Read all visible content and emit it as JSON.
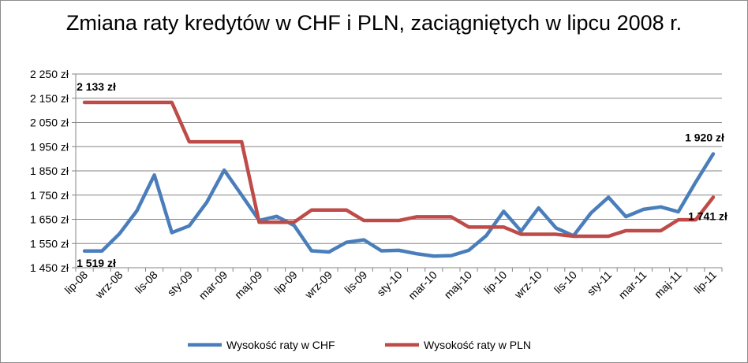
{
  "chart_data": {
    "type": "line",
    "title": "Zmiana raty kredytów w CHF i PLN, zaciągniętych w lipcu 2008 r.",
    "xlabel": "",
    "ylabel": "",
    "ylim": [
      1450,
      2250
    ],
    "y_ticks": [
      1450,
      1550,
      1650,
      1750,
      1850,
      1950,
      2050,
      2150,
      2250
    ],
    "y_tick_labels": [
      "1 450 zł",
      "1 550 zł",
      "1 650 zł",
      "1 750 zł",
      "1 850 zł",
      "1 950 zł",
      "2 050 zł",
      "2 150 zł",
      "2 250 zł"
    ],
    "x": [
      "lip-08",
      "sie-08",
      "wrz-08",
      "paź-08",
      "lis-08",
      "gru-08",
      "sty-09",
      "lut-09",
      "mar-09",
      "kwi-09",
      "maj-09",
      "cze-09",
      "lip-09",
      "sie-09",
      "wrz-09",
      "paź-09",
      "lis-09",
      "gru-09",
      "sty-10",
      "lut-10",
      "mar-10",
      "kwi-10",
      "maj-10",
      "cze-10",
      "lip-10",
      "sie-10",
      "wrz-10",
      "paź-10",
      "lis-10",
      "gru-10",
      "sty-11",
      "lut-11",
      "mar-11",
      "kwi-11",
      "maj-11",
      "cze-11",
      "lip-11"
    ],
    "x_tick_labels": [
      "lip-08",
      "wrz-08",
      "lis-08",
      "sty-09",
      "mar-09",
      "maj-09",
      "lip-09",
      "wrz-09",
      "lis-09",
      "sty-10",
      "mar-10",
      "maj-10",
      "lip-10",
      "wrz-10",
      "lis-10",
      "sty-11",
      "mar-11",
      "maj-11",
      "lip-11"
    ],
    "grid": "horizontal",
    "legend_position": "bottom",
    "series": [
      {
        "name": "Wysokość raty w CHF",
        "color": "#4a7ebb",
        "values": [
          1519,
          1519,
          1590,
          1685,
          1833,
          1595,
          1623,
          1720,
          1853,
          1750,
          1645,
          1662,
          1625,
          1520,
          1515,
          1555,
          1565,
          1520,
          1522,
          1508,
          1498,
          1500,
          1522,
          1582,
          1683,
          1601,
          1697,
          1614,
          1582,
          1676,
          1741,
          1661,
          1691,
          1701,
          1681,
          1804,
          1920
        ]
      },
      {
        "name": "Wysokość raty w PLN",
        "color": "#be4b48",
        "values": [
          2133,
          2133,
          2133,
          2133,
          2133,
          2133,
          1970,
          1970,
          1970,
          1970,
          1638,
          1638,
          1638,
          1688,
          1688,
          1688,
          1645,
          1645,
          1645,
          1660,
          1660,
          1660,
          1618,
          1618,
          1618,
          1588,
          1588,
          1588,
          1580,
          1580,
          1580,
          1603,
          1603,
          1603,
          1648,
          1648,
          1741
        ]
      }
    ],
    "data_labels": [
      {
        "series": 1,
        "index": 0,
        "text": "2 133 zł"
      },
      {
        "series": 0,
        "index": 0,
        "text": "1 519 zł"
      },
      {
        "series": 0,
        "index": 36,
        "text": "1 920 zł"
      },
      {
        "series": 1,
        "index": 36,
        "text": "1 741 zł"
      }
    ]
  }
}
